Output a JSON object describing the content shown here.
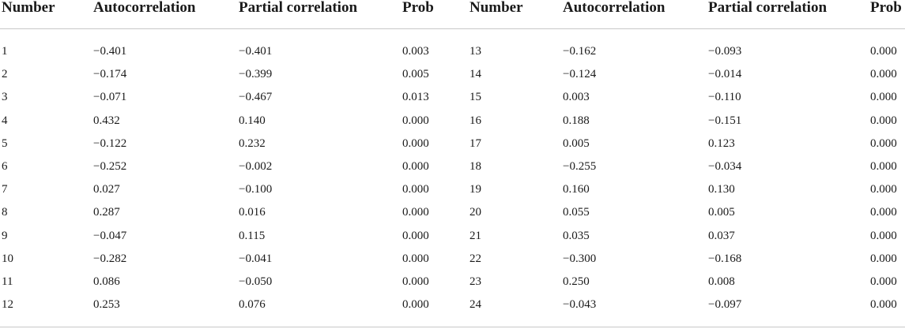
{
  "table": {
    "headers": [
      "Number",
      "Autocorrelation",
      "Partial correlation",
      "Prob",
      "Number",
      "Autocorrelation",
      "Partial correlation",
      "Prob"
    ],
    "rows": [
      [
        "1",
        "−0.401",
        "−0.401",
        "0.003",
        "13",
        "−0.162",
        "−0.093",
        "0.000"
      ],
      [
        "2",
        "−0.174",
        "−0.399",
        "0.005",
        "14",
        "−0.124",
        "−0.014",
        "0.000"
      ],
      [
        "3",
        "−0.071",
        "−0.467",
        "0.013",
        "15",
        "0.003",
        "−0.110",
        "0.000"
      ],
      [
        "4",
        "0.432",
        "0.140",
        "0.000",
        "16",
        "0.188",
        "−0.151",
        "0.000"
      ],
      [
        "5",
        "−0.122",
        "0.232",
        "0.000",
        "17",
        "0.005",
        "0.123",
        "0.000"
      ],
      [
        "6",
        "−0.252",
        "−0.002",
        "0.000",
        "18",
        "−0.255",
        "−0.034",
        "0.000"
      ],
      [
        "7",
        "0.027",
        "−0.100",
        "0.000",
        "19",
        "0.160",
        "0.130",
        "0.000"
      ],
      [
        "8",
        "0.287",
        "0.016",
        "0.000",
        "20",
        "0.055",
        "0.005",
        "0.000"
      ],
      [
        "9",
        "−0.047",
        "0.115",
        "0.000",
        "21",
        "0.035",
        "0.037",
        "0.000"
      ],
      [
        "10",
        "−0.282",
        "−0.041",
        "0.000",
        "22",
        "−0.300",
        "−0.168",
        "0.000"
      ],
      [
        "11",
        "0.086",
        "−0.050",
        "0.000",
        "23",
        "0.250",
        "0.008",
        "0.000"
      ],
      [
        "12",
        "0.253",
        "0.076",
        "0.000",
        "24",
        "−0.043",
        "−0.097",
        "0.000"
      ]
    ]
  }
}
